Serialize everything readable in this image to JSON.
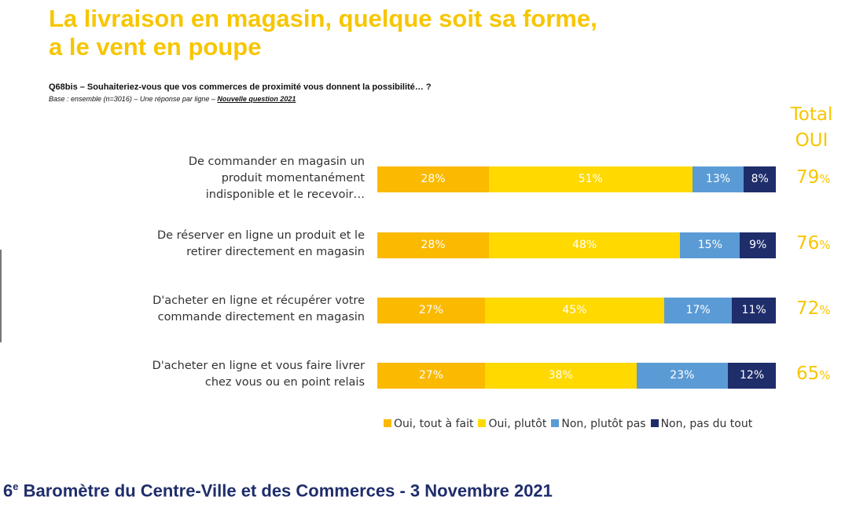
{
  "chart_data": {
    "type": "stacked-bar-horizontal",
    "title": [
      "La livraison en magasin, quelque soit sa forme,",
      "a le vent en poupe"
    ],
    "question": "Q68bis – Souhaiteriez-vous que vos commerces de proximité vous donnent la possibilité… ?",
    "base": "Base : ensemble (n=3016) – Une réponse par ligne – ",
    "base_note": "Nouvelle question 2021",
    "categories": [
      [
        "De commander en magasin un",
        "produit momentanément",
        "indisponible et le recevoir…"
      ],
      [
        "De réserver en ligne un produit et le",
        "retirer directement en magasin"
      ],
      [
        "D'acheter en ligne et récupérer votre",
        "commande directement en magasin"
      ],
      [
        "D'acheter en ligne et vous faire livrer",
        "chez vous ou en point relais"
      ]
    ],
    "xlim": [
      0,
      100
    ],
    "series": [
      {
        "name": "Oui, tout à fait",
        "color": "#fbb900",
        "values": [
          28,
          28,
          27,
          27
        ],
        "value_labels": [
          "28%",
          "28%",
          "27%",
          "27%"
        ]
      },
      {
        "name": "Oui, plutôt",
        "color": "#ffd900",
        "values": [
          51,
          48,
          45,
          38
        ],
        "value_labels": [
          "51%",
          "48%",
          "45%",
          "38%"
        ]
      },
      {
        "name": "Non, plutôt pas",
        "color": "#5b9bd5",
        "values": [
          13,
          15,
          17,
          23
        ],
        "value_labels": [
          "13%",
          "15%",
          "17%",
          "23%"
        ]
      },
      {
        "name": "Non, pas du tout",
        "color": "#1f2d6b",
        "values": [
          8,
          9,
          11,
          12
        ],
        "value_labels": [
          "8%",
          "9%",
          "11%",
          "12%"
        ]
      }
    ],
    "total": {
      "title": [
        "Total",
        "OUI"
      ],
      "values": [
        79,
        76,
        72,
        65
      ],
      "value_labels": [
        "79%",
        "76%",
        "72%",
        "65%"
      ]
    },
    "footer": {
      "number": "6",
      "superscript": "e",
      "text": " Baromètre du Centre-Ville et des Commerces - 3 Novembre 2021"
    }
  }
}
